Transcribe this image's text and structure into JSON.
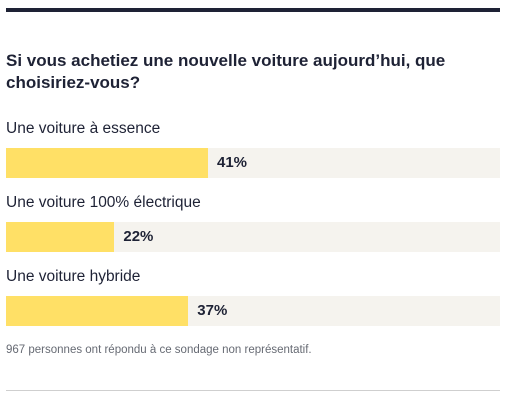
{
  "title": "Si vous achetiez une nouvelle voiture aujourd’hui, que choisiriez-vous?",
  "footnote": "967 personnes ont répondu à ce sondage non représentatif.",
  "colors": {
    "accent_bar": "#ffe066",
    "track": "#f5f3ee",
    "text": "#1e2235",
    "rule": "#1e2235"
  },
  "chart_data": {
    "type": "bar",
    "orientation": "horizontal",
    "title": "Si vous achetiez une nouvelle voiture aujourd’hui, que choisiriez-vous?",
    "categories": [
      "Une voiture à essence",
      "Une voiture 100% électrique",
      "Une voiture hybride"
    ],
    "values": [
      41,
      22,
      37
    ],
    "value_labels": [
      "41%",
      "22%",
      "37%"
    ],
    "xlim": [
      0,
      100
    ],
    "grid": false,
    "legend": "none"
  }
}
